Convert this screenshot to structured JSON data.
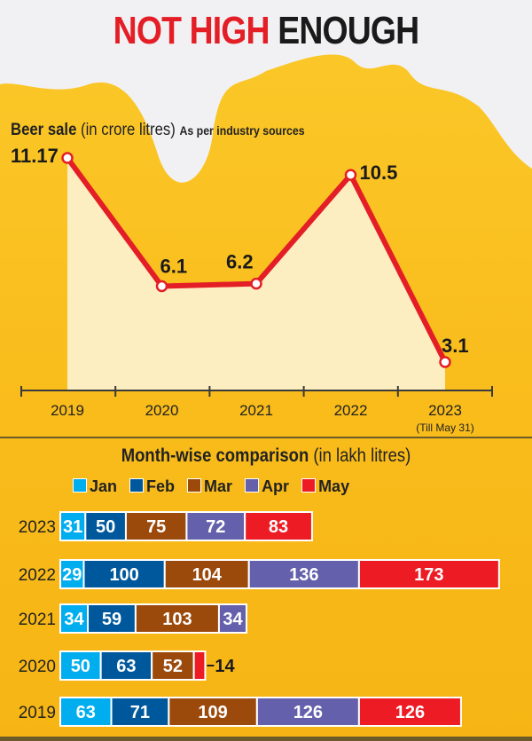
{
  "title": {
    "part1": "NOT HIGH",
    "part2": "ENOUGH"
  },
  "chart_data": [
    {
      "type": "line",
      "title": "Beer sale",
      "title_unit": "(in crore litres)",
      "source": "As per industry sources",
      "categories": [
        "2019",
        "2020",
        "2021",
        "2022",
        "2023"
      ],
      "category_notes": {
        "2023": "(Till May 31)"
      },
      "values": [
        11.17,
        6.1,
        6.2,
        10.5,
        3.1
      ],
      "data_labels": [
        "11.17",
        "6.1",
        "6.2",
        "10.5",
        "3.1"
      ],
      "ylim": [
        3.1,
        11.17
      ],
      "grid": false,
      "line_color": "#e41e26",
      "fill_color": "#fdf3d4"
    },
    {
      "type": "bar",
      "orientation": "horizontal",
      "stacked": true,
      "title": "Month-wise comparison",
      "title_unit": "(in lakh litres)",
      "legend_position": "top",
      "categories": [
        "2023",
        "2022",
        "2021",
        "2020",
        "2019"
      ],
      "series": [
        {
          "name": "Jan",
          "color": "#00aeef",
          "values": [
            31,
            29,
            34,
            50,
            63
          ]
        },
        {
          "name": "Feb",
          "color": "#00589c",
          "values": [
            50,
            100,
            59,
            63,
            71
          ]
        },
        {
          "name": "Mar",
          "color": "#9c4a0c",
          "values": [
            75,
            104,
            103,
            52,
            109
          ]
        },
        {
          "name": "Apr",
          "color": "#6460ab",
          "values": [
            72,
            136,
            34,
            null,
            126
          ]
        },
        {
          "name": "May",
          "color": "#ed1c24",
          "values": [
            83,
            173,
            null,
            14,
            126
          ]
        }
      ]
    }
  ]
}
